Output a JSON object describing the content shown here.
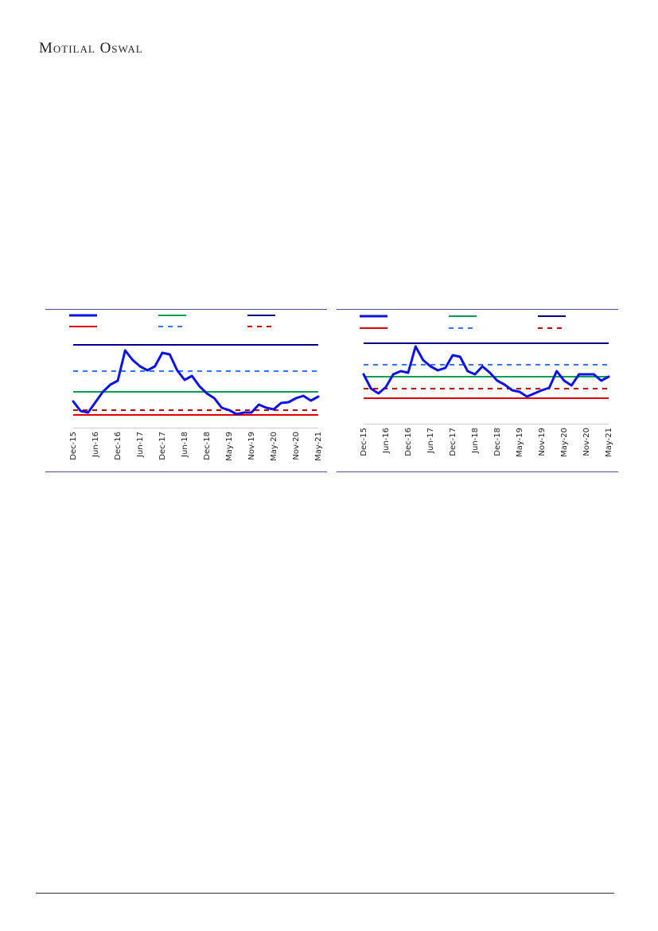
{
  "header": {
    "title": "Motilal Oswal"
  },
  "chart_data": [
    {
      "type": "line",
      "ylim": [
        0,
        110
      ],
      "legend": "top",
      "categories": [
        "Dec-15",
        null,
        null,
        "Jun-16",
        null,
        null,
        "Dec-16",
        null,
        null,
        "Jun-17",
        null,
        null,
        "Dec-17",
        null,
        null,
        "Jun-18",
        null,
        null,
        "Dec-18",
        null,
        null,
        "May-19",
        null,
        null,
        "Nov-19",
        null,
        null,
        "May-20",
        null,
        null,
        "Nov-20",
        null,
        null,
        "May-21"
      ],
      "series": [
        {
          "color": "#0a14e6",
          "width": 3,
          "values": [
            33,
            21,
            19,
            32,
            45,
            54,
            59,
            97,
            85,
            77,
            72,
            77,
            94,
            92,
            72,
            60,
            65,
            52,
            43,
            37,
            25,
            22,
            17,
            19,
            19,
            29,
            25,
            23,
            31,
            32,
            37,
            40,
            34,
            39
          ]
        },
        {
          "color": "#00a050",
          "width": 2,
          "value": 45
        },
        {
          "color": "#000080",
          "width": 2,
          "value": 104
        },
        {
          "color": "#e00000",
          "width": 2,
          "value": 16
        },
        {
          "color": "#3377ff",
          "width": 2,
          "dashed": true,
          "value": 71
        },
        {
          "color": "#c00000",
          "width": 2,
          "dashed": true,
          "value": 22
        }
      ]
    },
    {
      "type": "line",
      "ylim": [
        0,
        110
      ],
      "legend": "top",
      "categories": [
        "Dec-15",
        null,
        null,
        "Jun-16",
        null,
        null,
        "Dec-16",
        null,
        null,
        "Jun-17",
        null,
        null,
        "Dec-17",
        null,
        null,
        "Jun-18",
        null,
        null,
        "Dec-18",
        null,
        null,
        "May-19",
        null,
        null,
        "Nov-19",
        null,
        null,
        "May-20",
        null,
        null,
        "Nov-20",
        null,
        null,
        "May-21"
      ],
      "series": [
        {
          "color": "#0a14e6",
          "width": 3,
          "values": [
            62,
            44,
            38,
            46,
            62,
            66,
            64,
            97,
            80,
            72,
            67,
            70,
            86,
            84,
            66,
            62,
            72,
            64,
            54,
            49,
            42,
            40,
            34,
            38,
            42,
            45,
            66,
            54,
            48,
            62,
            62,
            62,
            54,
            59
          ]
        },
        {
          "color": "#00a050",
          "width": 2,
          "value": 59
        },
        {
          "color": "#000080",
          "width": 2,
          "value": 101
        },
        {
          "color": "#e00000",
          "width": 2,
          "value": 32
        },
        {
          "color": "#3377ff",
          "width": 2,
          "dashed": true,
          "value": 74
        },
        {
          "color": "#c00000",
          "width": 2,
          "dashed": true,
          "value": 44
        }
      ]
    }
  ]
}
